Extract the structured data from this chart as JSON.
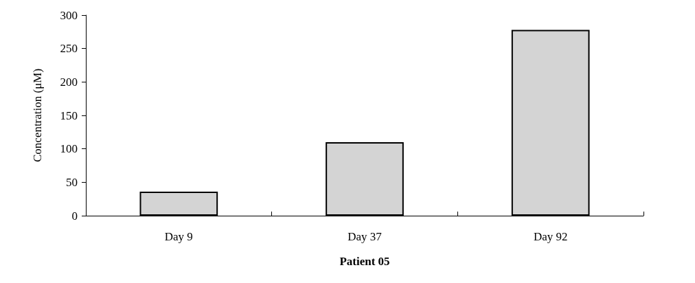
{
  "chart_data": {
    "type": "bar",
    "xlabel": "Patient 05",
    "ylabel": "Concentration (μM)",
    "categories": [
      "Day 9",
      "Day 37",
      "Day 92"
    ],
    "values": [
      36,
      110,
      278
    ],
    "color": "#d4d4d4",
    "ylim": [
      0,
      300
    ],
    "yticks": [
      0,
      50,
      100,
      150,
      200,
      250,
      300
    ],
    "grid": false
  }
}
